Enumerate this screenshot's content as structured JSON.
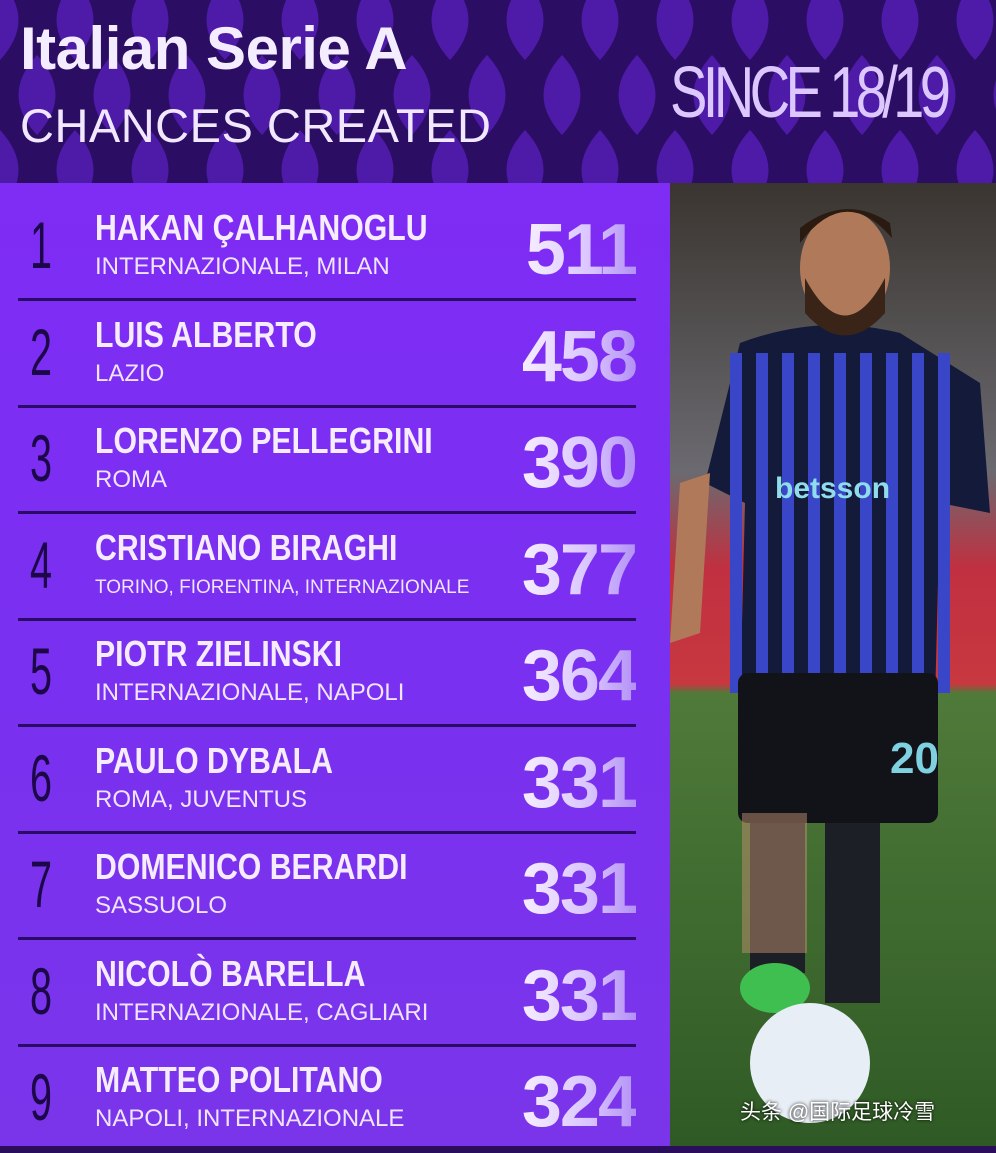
{
  "header": {
    "title": "Italian Serie A",
    "subtitle": "CHANCES CREATED",
    "since": "SINCE 18/19"
  },
  "colors": {
    "header_bg": "#2b0d63",
    "panel": "#7f2cf5",
    "rank": "#1c0848",
    "text": "#f5ecff"
  },
  "rows": [
    {
      "rank": "1",
      "name": "HAKAN ÇALHANOGLU",
      "team": "INTERNAZIONALE, MILAN",
      "value": "511"
    },
    {
      "rank": "2",
      "name": "LUIS ALBERTO",
      "team": "LAZIO",
      "value": "458"
    },
    {
      "rank": "3",
      "name": "LORENZO PELLEGRINI",
      "team": "ROMA",
      "value": "390"
    },
    {
      "rank": "4",
      "name": "CRISTIANO BIRAGHI",
      "team": "TORINO, FIORENTINA, INTERNAZIONALE",
      "value": "377"
    },
    {
      "rank": "5",
      "name": "PIOTR ZIELINSKI",
      "team": "INTERNAZIONALE, NAPOLI",
      "value": "364"
    },
    {
      "rank": "6",
      "name": "PAULO DYBALA",
      "team": "ROMA, JUVENTUS",
      "value": "331"
    },
    {
      "rank": "7",
      "name": "DOMENICO BERARDI",
      "team": "SASSUOLO",
      "value": "331"
    },
    {
      "rank": "8",
      "name": "NICOLÒ BARELLA",
      "team": "INTERNAZIONALE, CAGLIARI",
      "value": "331"
    },
    {
      "rank": "9",
      "name": "MATTEO POLITANO",
      "team": "NAPOLI, INTERNAZIONALE",
      "value": "324"
    }
  ],
  "photo": {
    "shirt_sponsor": "betsson",
    "shirt_number": "20"
  },
  "watermark": "头条 @国际足球冷雪"
}
